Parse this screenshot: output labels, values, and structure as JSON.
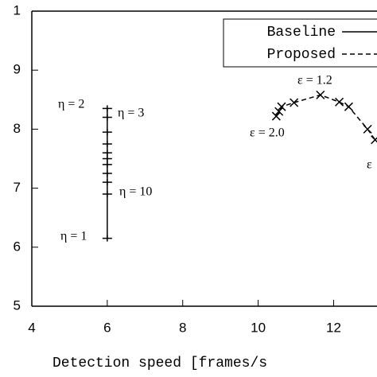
{
  "chart_data": {
    "type": "line",
    "xlabel": "Detection speed [frames/s",
    "xlim": [
      4,
      13.15
    ],
    "ylim": [
      5,
      10
    ],
    "xticks": [
      4,
      6,
      8,
      10,
      12
    ],
    "yticks": [
      5,
      6,
      7,
      8,
      9,
      {
        "value": 10,
        "label": "1"
      }
    ],
    "legend": "upper right",
    "series": [
      {
        "name": "Baseline",
        "color": "#000000",
        "style": "solid",
        "marker": "+",
        "x": [
          6,
          6,
          6,
          6,
          6,
          6,
          6,
          6,
          6,
          6,
          6
        ],
        "values": [
          8.35,
          8.2,
          7.95,
          7.75,
          7.6,
          7.5,
          7.4,
          7.25,
          7.1,
          6.9,
          6.15
        ]
      },
      {
        "name": "Proposed",
        "color": "#000000",
        "style": "dashed",
        "marker": "x",
        "x": [
          10.48,
          10.55,
          10.62,
          10.95,
          11.65,
          12.15,
          12.4,
          12.9,
          13.1
        ],
        "values": [
          8.22,
          8.3,
          8.38,
          8.45,
          8.58,
          8.46,
          8.38,
          8.0,
          7.82
        ]
      }
    ],
    "annotations": [
      "η = 2",
      "η = 3",
      "η = 10",
      "η = 1",
      "ε = 1.2",
      "ε = 2.0",
      "ε"
    ]
  }
}
